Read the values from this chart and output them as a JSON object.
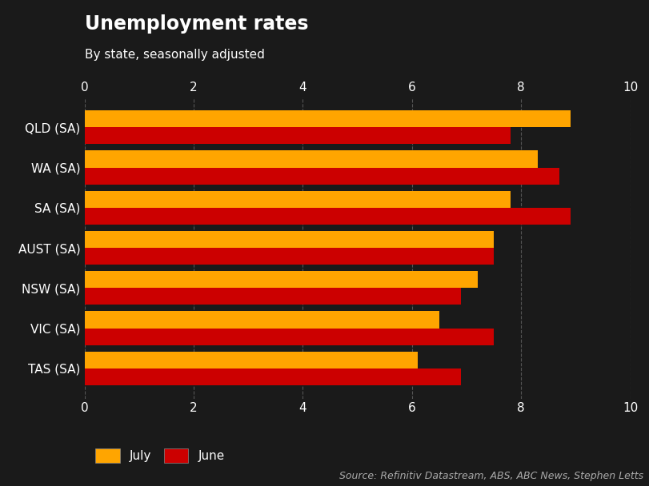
{
  "title": "Unemployment rates",
  "subtitle": "By state, seasonally adjusted",
  "categories": [
    "QLD (SA)",
    "WA (SA)",
    "SA (SA)",
    "AUST (SA)",
    "NSW (SA)",
    "VIC (SA)",
    "TAS (SA)"
  ],
  "july_values": [
    8.9,
    8.3,
    7.8,
    7.5,
    7.2,
    6.5,
    6.1
  ],
  "june_values": [
    7.8,
    8.7,
    8.9,
    7.5,
    6.9,
    7.5,
    6.9
  ],
  "july_color": "#FFA500",
  "june_color": "#CC0000",
  "background_color": "#1a1a1a",
  "text_color": "#FFFFFF",
  "grid_color": "#555555",
  "xlim": [
    0,
    10
  ],
  "xticks": [
    0,
    2,
    4,
    6,
    8,
    10
  ],
  "bar_height": 0.42,
  "source_text": "Source: Refinitiv Datastream, ABS, ABC News, Stephen Letts",
  "title_fontsize": 17,
  "subtitle_fontsize": 11,
  "tick_fontsize": 11,
  "label_fontsize": 11,
  "legend_fontsize": 11,
  "source_fontsize": 9
}
